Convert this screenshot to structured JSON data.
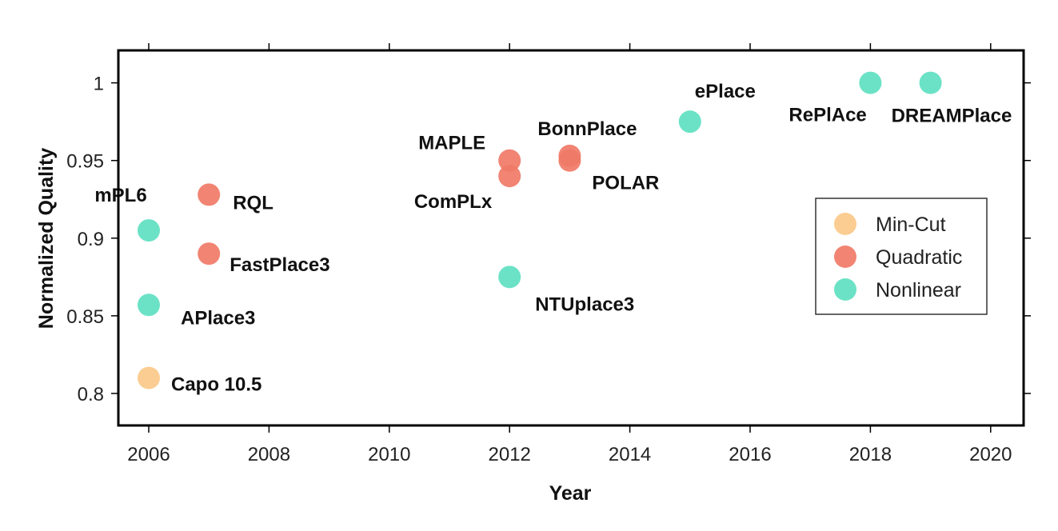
{
  "chart_data": {
    "type": "scatter",
    "title": "",
    "xlabel": "Year",
    "ylabel": "Normalized Quality",
    "xlim": [
      2005.5,
      2020.5
    ],
    "ylim": [
      0.78,
      1.02
    ],
    "xticks": [
      "2006",
      "2008",
      "2010",
      "2012",
      "2014",
      "2016",
      "2018",
      "2020"
    ],
    "yticks": [
      "0.8",
      "0.85",
      "0.9",
      "0.95",
      "1"
    ],
    "grid": false,
    "legend_position": "right",
    "series": [
      {
        "name": "Min-Cut",
        "color": "#fbc98a",
        "points": [
          {
            "label": "Capo 10.5",
            "x": 2006,
            "y": 0.81
          }
        ]
      },
      {
        "name": "Quadratic",
        "color": "#f07a67",
        "points": [
          {
            "label": "RQL",
            "x": 2007,
            "y": 0.928
          },
          {
            "label": "FastPlace3",
            "x": 2007,
            "y": 0.89
          },
          {
            "label": "MAPLE",
            "x": 2012,
            "y": 0.95
          },
          {
            "label": "ComPLx",
            "x": 2012,
            "y": 0.94
          },
          {
            "label": "BonnPlace",
            "x": 2013,
            "y": 0.953
          },
          {
            "label": "POLAR",
            "x": 2013,
            "y": 0.95
          }
        ]
      },
      {
        "name": "Nonlinear",
        "color": "#5ee0c1",
        "points": [
          {
            "label": "mPL6",
            "x": 2006,
            "y": 0.905
          },
          {
            "label": "APlace3",
            "x": 2006,
            "y": 0.857
          },
          {
            "label": "NTUplace3",
            "x": 2012,
            "y": 0.875
          },
          {
            "label": "ePlace",
            "x": 2015,
            "y": 0.975
          },
          {
            "label": "RePlAce",
            "x": 2018,
            "y": 1.0
          },
          {
            "label": "DREAMPlace",
            "x": 2019,
            "y": 1.0
          }
        ]
      }
    ]
  }
}
